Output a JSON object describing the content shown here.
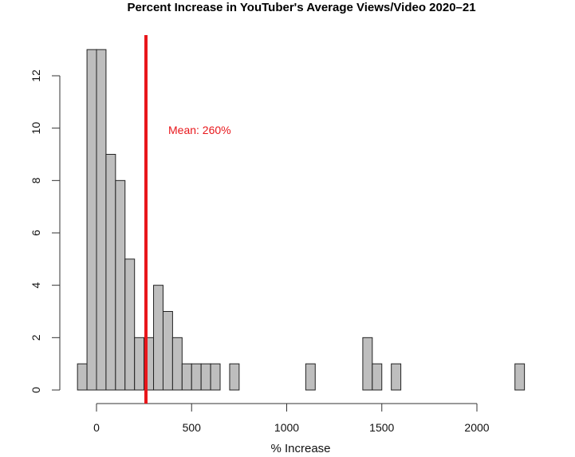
{
  "chart_data": {
    "type": "bar",
    "title": "Percent Increase in YouTuber's Average Views/Video 2020–21",
    "xlabel": "% Increase",
    "ylabel": "",
    "bin_start": -100,
    "bin_width": 50,
    "counts": [
      1,
      13,
      13,
      9,
      8,
      5,
      2,
      2,
      4,
      3,
      2,
      1,
      1,
      1,
      1,
      0,
      1,
      0,
      0,
      0,
      0,
      0,
      0,
      0,
      1,
      0,
      0,
      0,
      0,
      0,
      2,
      1,
      0,
      1,
      0,
      0,
      0,
      0,
      0,
      0,
      0,
      0,
      0,
      0,
      0,
      0,
      1
    ],
    "xticks": [
      "0",
      "500",
      "1000",
      "1500",
      "2000"
    ],
    "xtick_values": [
      0,
      500,
      1000,
      1500,
      2000
    ],
    "yticks": [
      "0",
      "2",
      "4",
      "6",
      "8",
      "10",
      "12"
    ],
    "ytick_values": [
      0,
      2,
      4,
      6,
      8,
      10,
      12
    ],
    "xlim": [
      -100,
      2250
    ],
    "ylim": [
      0,
      13
    ],
    "mean_line": {
      "value": 260,
      "label": "Mean: 260%",
      "color": "#e8161b"
    },
    "bar_color": "#bebebe",
    "grid": false
  }
}
